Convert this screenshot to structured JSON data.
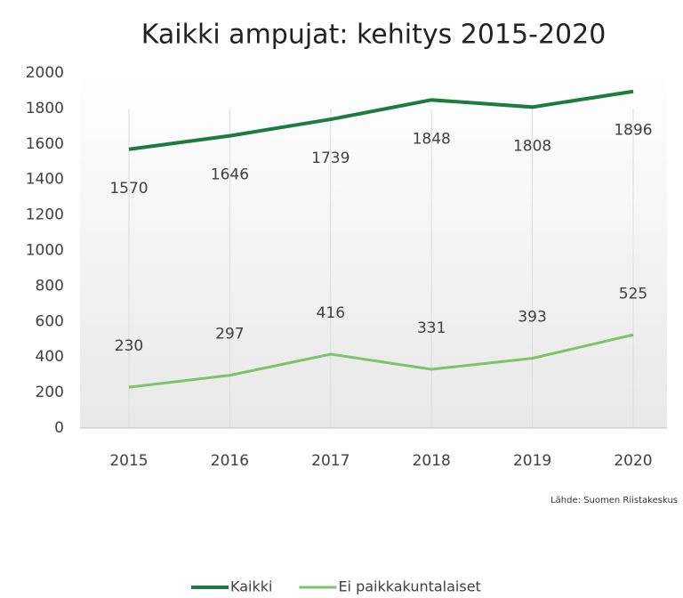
{
  "chart_data": {
    "type": "line",
    "title": "Kaikki ampujat: kehitys 2015-2020",
    "source": "Lähde: Suomen Riistakeskus",
    "categories": [
      "2015",
      "2016",
      "2017",
      "2018",
      "2019",
      "2020"
    ],
    "series": [
      {
        "name": "Kaikki",
        "color": "#1e7b3c",
        "values": [
          1570,
          1646,
          1739,
          1848,
          1808,
          1896
        ]
      },
      {
        "name": "Ei paikkakuntalaiset",
        "color": "#7dc36b",
        "values": [
          230,
          297,
          416,
          331,
          393,
          525
        ]
      }
    ],
    "ylim": [
      0,
      2000
    ],
    "yticks": [
      0,
      200,
      400,
      600,
      800,
      1000,
      1200,
      1400,
      1600,
      1800,
      2000
    ],
    "legend": "bottom"
  }
}
